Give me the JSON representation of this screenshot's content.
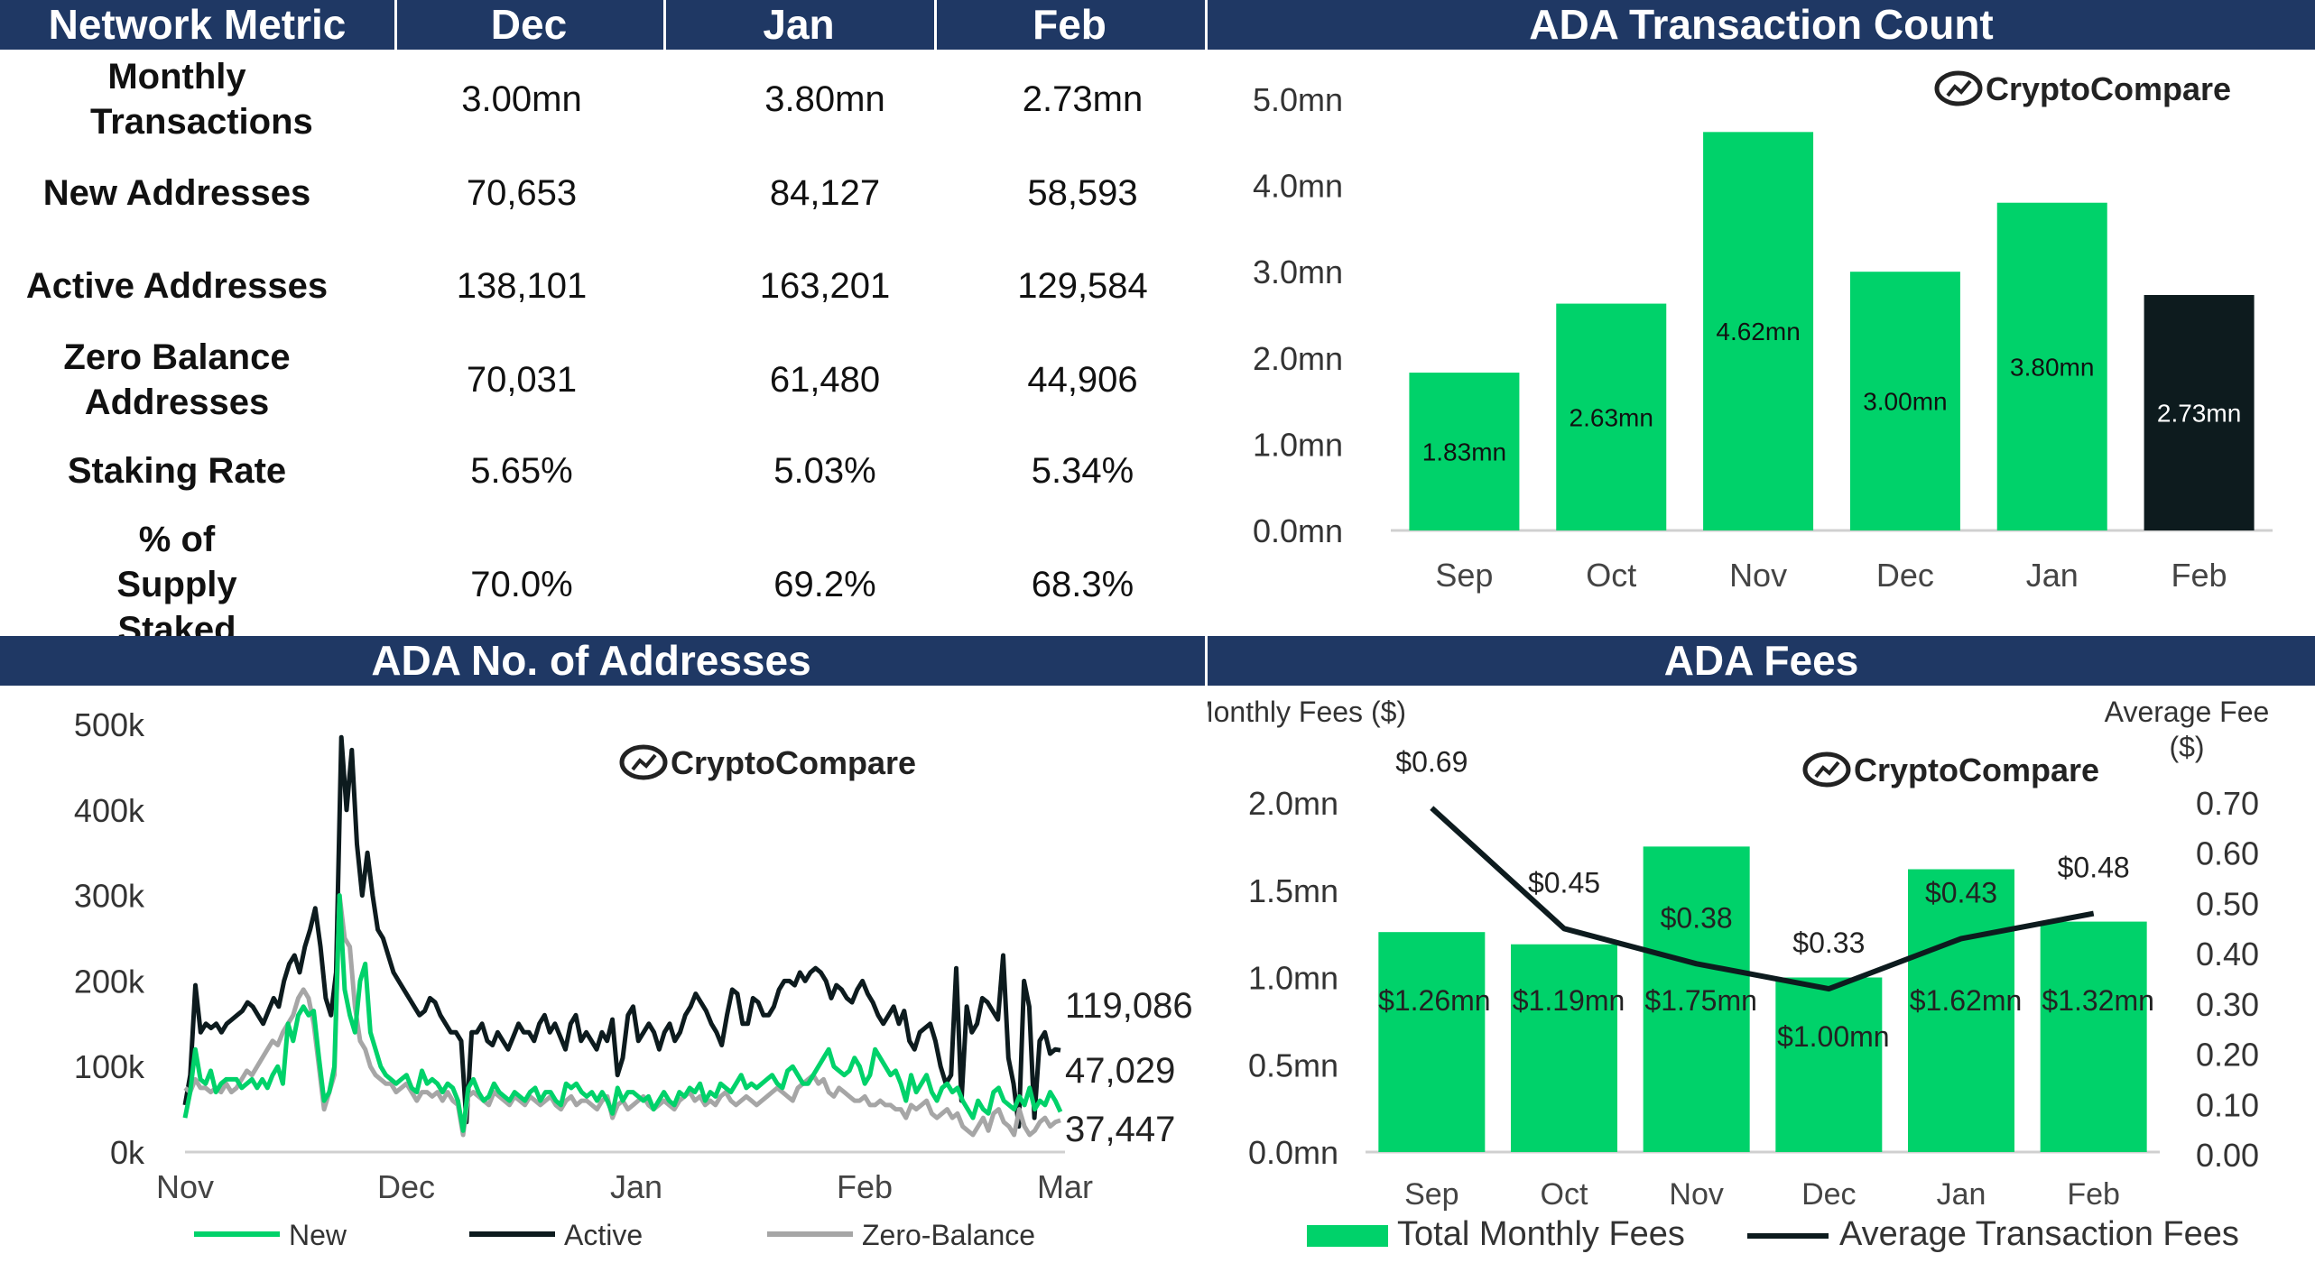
{
  "table": {
    "headers": [
      "Network Metric",
      "Dec",
      "Jan",
      "Feb"
    ],
    "rows": [
      {
        "label": "Monthly Transactions",
        "values": [
          "3.00mn",
          "3.80mn",
          "2.73mn"
        ]
      },
      {
        "label": "New Addresses",
        "values": [
          "70,653",
          "84,127",
          "58,593"
        ]
      },
      {
        "label": "Active Addresses",
        "values": [
          "138,101",
          "163,201",
          "129,584"
        ]
      },
      {
        "label": "Zero Balance Addresses",
        "values": [
          "70,031",
          "61,480",
          "44,906"
        ]
      },
      {
        "label": "Staking Rate",
        "values": [
          "5.65%",
          "5.03%",
          "5.34%"
        ]
      },
      {
        "label": "% of Supply Staked",
        "values": [
          "70.0%",
          "69.2%",
          "68.3%"
        ]
      }
    ]
  },
  "logo_text": "CryptoCompare",
  "colors": {
    "header": "#1f3864",
    "green": "#00d26a",
    "dark": "#0d1b1e",
    "grey": "#a6a6a6"
  },
  "chart_data": [
    {
      "type": "bar",
      "title": "ADA Transaction Count",
      "categories": [
        "Sep",
        "Oct",
        "Nov",
        "Dec",
        "Jan",
        "Feb"
      ],
      "values": [
        1.83,
        2.63,
        4.62,
        3.0,
        3.8,
        2.73
      ],
      "labels": [
        "1.83mn",
        "2.63mn",
        "4.62mn",
        "3.00mn",
        "3.80mn",
        "2.73mn"
      ],
      "highlight_index": 5,
      "ylim": [
        0,
        5
      ],
      "yticks": [
        "0.0mn",
        "1.0mn",
        "2.0mn",
        "3.0mn",
        "4.0mn",
        "5.0mn"
      ]
    },
    {
      "type": "line",
      "title": "ADA No. of Addresses",
      "ylim": [
        0,
        500000
      ],
      "yticks": [
        "0k",
        "100k",
        "200k",
        "300k",
        "400k",
        "500k"
      ],
      "xticks": [
        "Nov",
        "Dec",
        "Jan",
        "Feb",
        "Mar"
      ],
      "end_labels": [
        "119,086",
        "47,029",
        "37,447"
      ],
      "series": [
        {
          "name": "New",
          "color": "#00d26a",
          "values": [
            40,
            70,
            120,
            85,
            80,
            95,
            70,
            80,
            85,
            85,
            85,
            75,
            80,
            85,
            75,
            85,
            75,
            90,
            100,
            80,
            150,
            130,
            160,
            170,
            160,
            165,
            110,
            60,
            70,
            100,
            300,
            190,
            160,
            140,
            200,
            220,
            140,
            120,
            100,
            90,
            85,
            80,
            85,
            90,
            75,
            70,
            95,
            80,
            85,
            80,
            70,
            80,
            75,
            60,
            25,
            75,
            85,
            70,
            60,
            65,
            80,
            70,
            65,
            60,
            70,
            65,
            60,
            70,
            75,
            60,
            70,
            70,
            60,
            55,
            80,
            75,
            80,
            70,
            65,
            70,
            60,
            70,
            60,
            45,
            75,
            60,
            70,
            70,
            65,
            60,
            65,
            50,
            60,
            70,
            60,
            55,
            70,
            65,
            75,
            70,
            80,
            60,
            70,
            65,
            80,
            75,
            70,
            80,
            90,
            75,
            80,
            75,
            80,
            85,
            90,
            80,
            75,
            95,
            100,
            90,
            80,
            80,
            90,
            100,
            110,
            120,
            100,
            95,
            90,
            95,
            110,
            100,
            80,
            90,
            120,
            110,
            100,
            90,
            95,
            80,
            60,
            90,
            70,
            80,
            90,
            70,
            60,
            75,
            80,
            70,
            75,
            60,
            50,
            40,
            60,
            50,
            45,
            70,
            75,
            60,
            55,
            50,
            65,
            55,
            75,
            50,
            60,
            55,
            70,
            60,
            47
          ]
        },
        {
          "name": "Active",
          "color": "#0d1b1e",
          "values": [
            55,
            90,
            195,
            140,
            150,
            145,
            150,
            140,
            150,
            155,
            160,
            165,
            175,
            170,
            160,
            150,
            165,
            180,
            170,
            200,
            220,
            230,
            210,
            240,
            260,
            285,
            240,
            180,
            160,
            210,
            485,
            400,
            470,
            360,
            300,
            350,
            300,
            260,
            250,
            230,
            210,
            200,
            190,
            180,
            170,
            160,
            165,
            180,
            175,
            160,
            150,
            140,
            140,
            130,
            35,
            140,
            140,
            150,
            130,
            125,
            140,
            130,
            120,
            135,
            150,
            140,
            140,
            130,
            150,
            160,
            140,
            150,
            135,
            120,
            150,
            160,
            130,
            140,
            130,
            120,
            140,
            130,
            155,
            90,
            110,
            160,
            170,
            130,
            140,
            150,
            140,
            120,
            140,
            150,
            130,
            140,
            160,
            170,
            185,
            175,
            165,
            150,
            140,
            125,
            160,
            190,
            185,
            150,
            150,
            180,
            175,
            160,
            160,
            170,
            190,
            200,
            200,
            195,
            210,
            200,
            210,
            215,
            210,
            200,
            180,
            195,
            190,
            180,
            175,
            190,
            200,
            185,
            175,
            160,
            150,
            160,
            170,
            150,
            165,
            130,
            120,
            140,
            145,
            150,
            130,
            100,
            80,
            90,
            215,
            60,
            170,
            140,
            150,
            180,
            175,
            165,
            155,
            230,
            110,
            80,
            30,
            200,
            170,
            40,
            130,
            140,
            115,
            120,
            119
          ]
        },
        {
          "name": "Zero-Balance",
          "color": "#a6a6a6",
          "values": [
            75,
            70,
            85,
            75,
            75,
            70,
            75,
            70,
            80,
            70,
            75,
            85,
            95,
            90,
            100,
            110,
            120,
            130,
            125,
            140,
            150,
            160,
            180,
            190,
            180,
            150,
            100,
            50,
            70,
            90,
            300,
            250,
            240,
            170,
            130,
            120,
            100,
            90,
            85,
            80,
            80,
            70,
            75,
            80,
            70,
            60,
            70,
            70,
            65,
            70,
            60,
            70,
            60,
            55,
            20,
            65,
            70,
            65,
            60,
            55,
            70,
            65,
            60,
            55,
            65,
            60,
            55,
            65,
            60,
            55,
            60,
            65,
            55,
            50,
            60,
            65,
            55,
            60,
            60,
            55,
            50,
            60,
            65,
            40,
            55,
            60,
            50,
            55,
            60,
            65,
            55,
            50,
            55,
            60,
            55,
            50,
            60,
            65,
            70,
            60,
            65,
            55,
            60,
            55,
            65,
            70,
            60,
            55,
            60,
            65,
            60,
            55,
            60,
            65,
            70,
            75,
            70,
            65,
            60,
            75,
            80,
            85,
            90,
            80,
            85,
            70,
            65,
            75,
            70,
            65,
            60,
            60,
            65,
            55,
            55,
            60,
            55,
            55,
            50,
            50,
            40,
            55,
            50,
            55,
            60,
            45,
            40,
            45,
            50,
            40,
            45,
            30,
            25,
            20,
            30,
            40,
            25,
            45,
            50,
            35,
            30,
            20,
            50,
            30,
            20,
            25,
            35,
            40,
            30,
            35,
            37
          ]
        }
      ]
    },
    {
      "type": "bar+line",
      "title": "ADA Fees",
      "categories": [
        "Sep",
        "Oct",
        "Nov",
        "Dec",
        "Jan",
        "Feb"
      ],
      "bar_series": {
        "name": "Total Monthly Fees",
        "values": [
          1.26,
          1.19,
          1.75,
          1.0,
          1.62,
          1.32
        ],
        "labels": [
          "$1.26mn",
          "$1.19mn",
          "$1.75mn",
          "$1.00mn",
          "$1.62mn",
          "$1.32mn"
        ]
      },
      "line_series": {
        "name": "Average Transaction Fees",
        "values": [
          0.69,
          0.45,
          0.38,
          0.33,
          0.43,
          0.48
        ],
        "labels": [
          "$0.69",
          "$0.45",
          "$0.38",
          "$0.33",
          "$0.43",
          "$0.48"
        ]
      },
      "ylabel_left": "Monthly Fees ($)",
      "ylabel_right": [
        "Average Fee",
        "($)"
      ],
      "ylim_left": [
        0,
        2.0
      ],
      "ylim_right": [
        0,
        0.7
      ],
      "yticks_left": [
        "0.0mn",
        "0.5mn",
        "1.0mn",
        "1.5mn",
        "2.0mn"
      ],
      "yticks_right": [
        "0.00",
        "0.10",
        "0.20",
        "0.30",
        "0.40",
        "0.50",
        "0.60",
        "0.70"
      ]
    }
  ]
}
